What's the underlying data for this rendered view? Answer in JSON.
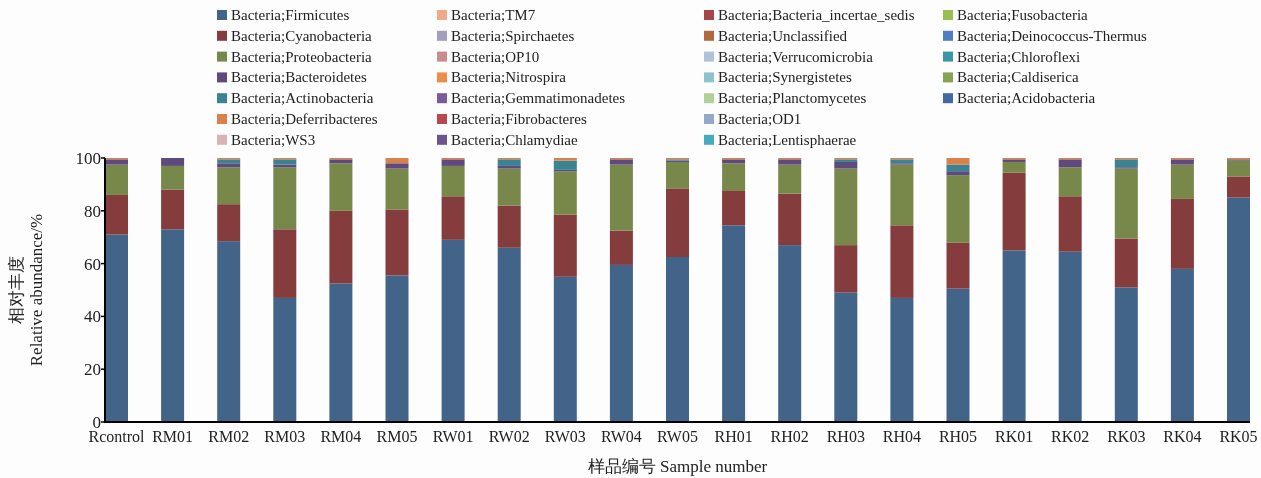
{
  "chart_data": {
    "type": "bar",
    "stacked": true,
    "legend": "top",
    "xlabel": "样品编号 Sample number",
    "ylabel": "相对丰度\nRelative abundance/%",
    "ylim": [
      0,
      100
    ],
    "yticks": [
      0,
      20,
      40,
      60,
      80,
      100
    ],
    "categories": [
      "Rcontrol",
      "RM01",
      "RM02",
      "RM03",
      "RM04",
      "RM05",
      "RW01",
      "RW02",
      "RW03",
      "RW04",
      "RW05",
      "RH01",
      "RH02",
      "RH03",
      "RH04",
      "RH05",
      "RK01",
      "RK02",
      "RK03",
      "RK04",
      "RK05"
    ],
    "series": [
      {
        "name": "Bacteria;Firmicutes",
        "color": "#426488",
        "values": [
          71,
          73,
          68.5,
          47,
          52.5,
          55.5,
          69,
          66,
          55,
          59.5,
          62.5,
          74.5,
          67,
          49,
          47,
          50.5,
          65,
          64.5,
          51,
          58,
          85
        ]
      },
      {
        "name": "Bacteria;Cyanobacteria",
        "color": "#843c3c",
        "values": [
          15,
          15,
          14,
          26,
          27.5,
          25,
          16.5,
          16,
          23.5,
          13,
          26,
          13,
          19.5,
          18,
          27.5,
          17.5,
          29.5,
          21,
          18.5,
          26.5,
          8
        ]
      },
      {
        "name": "Bacteria;Proteobacteria",
        "color": "#77884a",
        "values": [
          11.5,
          9,
          14,
          23.5,
          18,
          15.5,
          11.5,
          14,
          16.5,
          25,
          10,
          10.5,
          11,
          29,
          23,
          25.5,
          4,
          11,
          26.5,
          13,
          6
        ]
      },
      {
        "name": "Bacteria;Bacteroidetes",
        "color": "#5e4a7d",
        "values": [
          2,
          3,
          1.5,
          1,
          1.5,
          2,
          2.5,
          1,
          0.5,
          2,
          0.5,
          1.5,
          2,
          2.5,
          0.5,
          1.5,
          1,
          3,
          0.5,
          2,
          0.5
        ]
      },
      {
        "name": "Bacteria;Actinobacteria",
        "color": "#3b8293",
        "values": [
          0,
          0,
          1.5,
          2,
          0,
          0,
          0,
          2.5,
          3.5,
          0,
          0.5,
          0,
          0,
          1,
          1.5,
          2.5,
          0,
          0,
          3,
          0,
          0
        ]
      },
      {
        "name": "Bacteria;Deferribacteres",
        "color": "#d9814a",
        "values": [
          0.5,
          0,
          0.5,
          0.5,
          0.5,
          2,
          0.5,
          0.5,
          1,
          0.5,
          0.5,
          0.5,
          0.5,
          0.5,
          0.5,
          2.5,
          0.5,
          0.5,
          0.5,
          0.5,
          0.5
        ]
      },
      {
        "name": "Bacteria;WS3",
        "color": "#d9b3b3",
        "values": [
          0,
          0,
          0,
          0,
          0,
          0,
          0,
          0,
          0,
          0,
          0,
          0,
          0,
          0,
          0,
          0,
          0,
          0,
          0,
          0,
          0
        ]
      },
      {
        "name": "Bacteria;TM7",
        "color": "#f2a98a",
        "values": [
          0,
          0,
          0,
          0,
          0,
          0,
          0,
          0,
          0,
          0,
          0,
          0,
          0,
          0,
          0,
          0,
          0,
          0,
          0,
          0,
          0
        ]
      },
      {
        "name": "Bacteria;Spirchaetes",
        "color": "#a39ebd",
        "values": [
          0,
          0,
          0,
          0,
          0,
          0,
          0,
          0,
          0,
          0,
          0,
          0,
          0,
          0,
          0,
          0,
          0,
          0,
          0,
          0,
          0
        ]
      },
      {
        "name": "Bacteria;OP10",
        "color": "#c98b8e",
        "values": [
          0,
          0,
          0,
          0,
          0,
          0,
          0,
          0,
          0,
          0,
          0,
          0,
          0,
          0,
          0,
          0,
          0,
          0,
          0,
          0,
          0
        ]
      },
      {
        "name": "Bacteria;Nitrospira",
        "color": "#ef8a4a",
        "values": [
          0,
          0,
          0,
          0,
          0,
          0,
          0,
          0,
          0,
          0,
          0,
          0,
          0,
          0,
          0,
          0,
          0,
          0,
          0,
          0,
          0
        ]
      },
      {
        "name": "Bacteria;Gemmatimonadetes",
        "color": "#7a5a9a",
        "values": [
          0,
          0,
          0,
          0,
          0,
          0,
          0,
          0,
          0,
          0,
          0,
          0,
          0,
          0,
          0,
          0,
          0,
          0,
          0,
          0,
          0
        ]
      },
      {
        "name": "Bacteria;Fibrobacteres",
        "color": "#b8474e",
        "values": [
          0,
          0,
          0,
          0,
          0,
          0,
          0,
          0,
          0,
          0,
          0,
          0,
          0,
          0,
          0,
          0,
          0,
          0,
          0,
          0,
          0
        ]
      },
      {
        "name": "Bacteria;Chlamydiae",
        "color": "#6c5490",
        "values": [
          0,
          0,
          0,
          0,
          0,
          0,
          0,
          0,
          0,
          0,
          0,
          0,
          0,
          0,
          0,
          0,
          0,
          0,
          0,
          0,
          0
        ]
      },
      {
        "name": "Bacteria;Bacteria_incertae_sedis",
        "color": "#a6454a",
        "values": [
          0,
          0,
          0,
          0,
          0,
          0,
          0,
          0,
          0,
          0,
          0,
          0,
          0,
          0,
          0,
          0,
          0,
          0,
          0,
          0,
          0
        ]
      },
      {
        "name": "Bacteria;Unclassified",
        "color": "#b06a3e",
        "values": [
          0,
          0,
          0,
          0,
          0,
          0,
          0,
          0,
          0,
          0,
          0,
          0,
          0,
          0,
          0,
          0,
          0,
          0,
          0,
          0,
          0
        ]
      },
      {
        "name": "Bacteria;Verrucomicrobia",
        "color": "#b3c0d9",
        "values": [
          0,
          0,
          0,
          0,
          0,
          0,
          0,
          0,
          0,
          0,
          0,
          0,
          0,
          0,
          0,
          0,
          0,
          0,
          0,
          0,
          0
        ]
      },
      {
        "name": "Bacteria;Synergistetes",
        "color": "#8fc2cf",
        "values": [
          0,
          0,
          0,
          0,
          0,
          0,
          0,
          0,
          0,
          0,
          0,
          0,
          0,
          0,
          0,
          0,
          0,
          0,
          0,
          0,
          0
        ]
      },
      {
        "name": "Bacteria;Planctomycetes",
        "color": "#b3cf9a",
        "values": [
          0,
          0,
          0,
          0,
          0,
          0,
          0,
          0,
          0,
          0,
          0,
          0,
          0,
          0,
          0,
          0,
          0,
          0,
          0,
          0,
          0
        ]
      },
      {
        "name": "Bacteria;OD1",
        "color": "#94a8cc",
        "values": [
          0,
          0,
          0,
          0,
          0,
          0,
          0,
          0,
          0,
          0,
          0,
          0,
          0,
          0,
          0,
          0,
          0,
          0,
          0,
          0,
          0
        ]
      },
      {
        "name": "Bacteria;Lentisphaerae",
        "color": "#45abbf",
        "values": [
          0,
          0,
          0,
          0,
          0,
          0,
          0,
          0,
          0,
          0,
          0,
          0,
          0,
          0,
          0,
          0,
          0,
          0,
          0,
          0,
          0
        ]
      },
      {
        "name": "Bacteria;Fusobacteria",
        "color": "#99bf52",
        "values": [
          0,
          0,
          0,
          0,
          0,
          0,
          0,
          0,
          0,
          0,
          0,
          0,
          0,
          0,
          0,
          0,
          0,
          0,
          0,
          0,
          0
        ]
      },
      {
        "name": "Bacteria;Deinococcus-Thermus",
        "color": "#4f7fbf",
        "values": [
          0,
          0,
          0,
          0,
          0,
          0,
          0,
          0,
          0,
          0,
          0,
          0,
          0,
          0,
          0,
          0,
          0,
          0,
          0,
          0,
          0
        ]
      },
      {
        "name": "Bacteria;Chloroflexi",
        "color": "#3a97a6",
        "values": [
          0,
          0,
          0,
          0,
          0,
          0,
          0,
          0,
          0,
          0,
          0,
          0,
          0,
          0,
          0,
          0,
          0,
          0,
          0,
          0,
          0
        ]
      },
      {
        "name": "Bacteria;Caldiserica",
        "color": "#86a352",
        "values": [
          0,
          0,
          0,
          0,
          0,
          0,
          0,
          0,
          0,
          0,
          0,
          0,
          0,
          0,
          0,
          0,
          0,
          0,
          0,
          0,
          0
        ]
      },
      {
        "name": "Bacteria;Acidobacteria",
        "color": "#44699e",
        "values": [
          0,
          0,
          0,
          0,
          0,
          0,
          0,
          0,
          0,
          0,
          0,
          0,
          0,
          0,
          0,
          0,
          0,
          0,
          0,
          0,
          0
        ]
      }
    ]
  }
}
